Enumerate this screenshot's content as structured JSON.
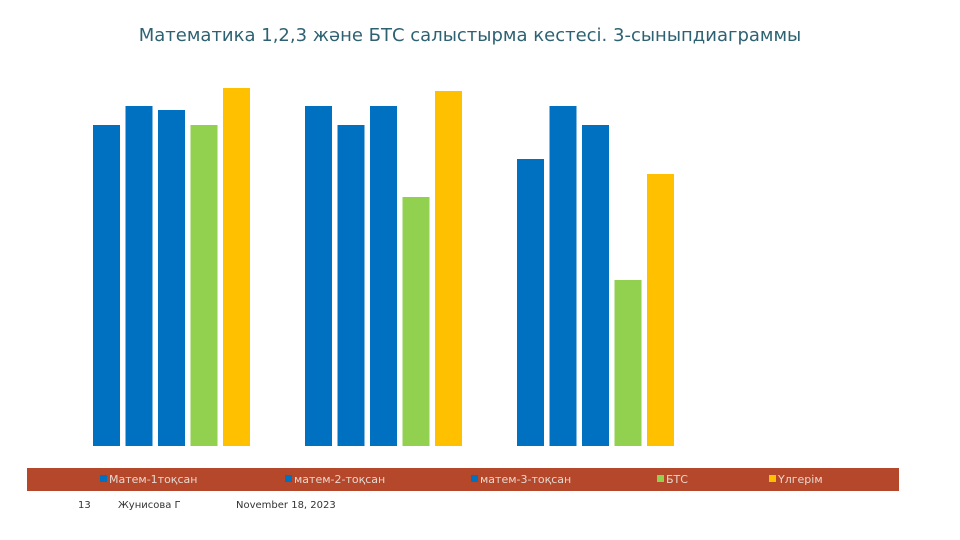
{
  "chart_data": {
    "type": "bar",
    "title": "Математика 1,2,3 және БТС салыстырма кестесі.  3-сыныпдиаграммы",
    "categories": [
      null,
      null,
      null
    ],
    "series": [
      {
        "name": "Матем-1тоқсан",
        "color": "#0070c0",
        "values": [
          321,
          340,
          287
        ]
      },
      {
        "name": "матем-2-тоқсан",
        "color": "#0070c0",
        "values": [
          340,
          321,
          340
        ]
      },
      {
        "name": "матем-3-тоқсан",
        "color": "#0070c0",
        "values": [
          336,
          340,
          321
        ]
      },
      {
        "name": "БТС",
        "color": "#92d050",
        "values": [
          321,
          249,
          166
        ]
      },
      {
        "name": "Үлгерім",
        "color": "#ffc000",
        "values": [
          358,
          355,
          272
        ]
      }
    ],
    "legend": "bottom"
  },
  "footer": {
    "slide_number": "13",
    "author": "Жунисова Г",
    "date": "November 18, 2023"
  }
}
